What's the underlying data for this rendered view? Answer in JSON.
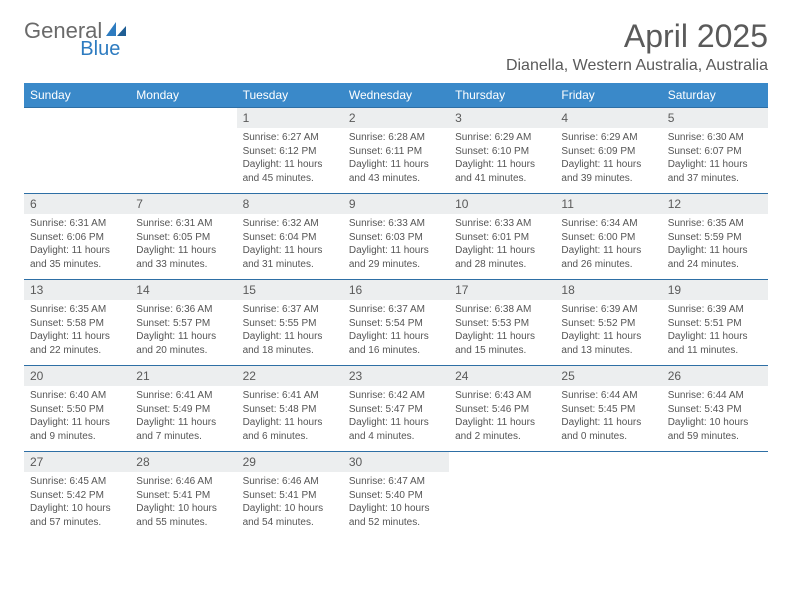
{
  "logo": {
    "part1": "General",
    "part2": "Blue"
  },
  "title": "April 2025",
  "location": "Dianella, Western Australia, Australia",
  "colors": {
    "header_bg": "#3a89c9",
    "header_text": "#ffffff",
    "rule": "#2e6fa5",
    "daynum_bg": "#eceeef",
    "text": "#555555",
    "logo_gray": "#6a6a6a",
    "logo_blue": "#2d7bc0"
  },
  "daysOfWeek": [
    "Sunday",
    "Monday",
    "Tuesday",
    "Wednesday",
    "Thursday",
    "Friday",
    "Saturday"
  ],
  "weeks": [
    [
      null,
      null,
      {
        "n": "1",
        "sr": "Sunrise: 6:27 AM",
        "ss": "Sunset: 6:12 PM",
        "d1": "Daylight: 11 hours",
        "d2": "and 45 minutes."
      },
      {
        "n": "2",
        "sr": "Sunrise: 6:28 AM",
        "ss": "Sunset: 6:11 PM",
        "d1": "Daylight: 11 hours",
        "d2": "and 43 minutes."
      },
      {
        "n": "3",
        "sr": "Sunrise: 6:29 AM",
        "ss": "Sunset: 6:10 PM",
        "d1": "Daylight: 11 hours",
        "d2": "and 41 minutes."
      },
      {
        "n": "4",
        "sr": "Sunrise: 6:29 AM",
        "ss": "Sunset: 6:09 PM",
        "d1": "Daylight: 11 hours",
        "d2": "and 39 minutes."
      },
      {
        "n": "5",
        "sr": "Sunrise: 6:30 AM",
        "ss": "Sunset: 6:07 PM",
        "d1": "Daylight: 11 hours",
        "d2": "and 37 minutes."
      }
    ],
    [
      {
        "n": "6",
        "sr": "Sunrise: 6:31 AM",
        "ss": "Sunset: 6:06 PM",
        "d1": "Daylight: 11 hours",
        "d2": "and 35 minutes."
      },
      {
        "n": "7",
        "sr": "Sunrise: 6:31 AM",
        "ss": "Sunset: 6:05 PM",
        "d1": "Daylight: 11 hours",
        "d2": "and 33 minutes."
      },
      {
        "n": "8",
        "sr": "Sunrise: 6:32 AM",
        "ss": "Sunset: 6:04 PM",
        "d1": "Daylight: 11 hours",
        "d2": "and 31 minutes."
      },
      {
        "n": "9",
        "sr": "Sunrise: 6:33 AM",
        "ss": "Sunset: 6:03 PM",
        "d1": "Daylight: 11 hours",
        "d2": "and 29 minutes."
      },
      {
        "n": "10",
        "sr": "Sunrise: 6:33 AM",
        "ss": "Sunset: 6:01 PM",
        "d1": "Daylight: 11 hours",
        "d2": "and 28 minutes."
      },
      {
        "n": "11",
        "sr": "Sunrise: 6:34 AM",
        "ss": "Sunset: 6:00 PM",
        "d1": "Daylight: 11 hours",
        "d2": "and 26 minutes."
      },
      {
        "n": "12",
        "sr": "Sunrise: 6:35 AM",
        "ss": "Sunset: 5:59 PM",
        "d1": "Daylight: 11 hours",
        "d2": "and 24 minutes."
      }
    ],
    [
      {
        "n": "13",
        "sr": "Sunrise: 6:35 AM",
        "ss": "Sunset: 5:58 PM",
        "d1": "Daylight: 11 hours",
        "d2": "and 22 minutes."
      },
      {
        "n": "14",
        "sr": "Sunrise: 6:36 AM",
        "ss": "Sunset: 5:57 PM",
        "d1": "Daylight: 11 hours",
        "d2": "and 20 minutes."
      },
      {
        "n": "15",
        "sr": "Sunrise: 6:37 AM",
        "ss": "Sunset: 5:55 PM",
        "d1": "Daylight: 11 hours",
        "d2": "and 18 minutes."
      },
      {
        "n": "16",
        "sr": "Sunrise: 6:37 AM",
        "ss": "Sunset: 5:54 PM",
        "d1": "Daylight: 11 hours",
        "d2": "and 16 minutes."
      },
      {
        "n": "17",
        "sr": "Sunrise: 6:38 AM",
        "ss": "Sunset: 5:53 PM",
        "d1": "Daylight: 11 hours",
        "d2": "and 15 minutes."
      },
      {
        "n": "18",
        "sr": "Sunrise: 6:39 AM",
        "ss": "Sunset: 5:52 PM",
        "d1": "Daylight: 11 hours",
        "d2": "and 13 minutes."
      },
      {
        "n": "19",
        "sr": "Sunrise: 6:39 AM",
        "ss": "Sunset: 5:51 PM",
        "d1": "Daylight: 11 hours",
        "d2": "and 11 minutes."
      }
    ],
    [
      {
        "n": "20",
        "sr": "Sunrise: 6:40 AM",
        "ss": "Sunset: 5:50 PM",
        "d1": "Daylight: 11 hours",
        "d2": "and 9 minutes."
      },
      {
        "n": "21",
        "sr": "Sunrise: 6:41 AM",
        "ss": "Sunset: 5:49 PM",
        "d1": "Daylight: 11 hours",
        "d2": "and 7 minutes."
      },
      {
        "n": "22",
        "sr": "Sunrise: 6:41 AM",
        "ss": "Sunset: 5:48 PM",
        "d1": "Daylight: 11 hours",
        "d2": "and 6 minutes."
      },
      {
        "n": "23",
        "sr": "Sunrise: 6:42 AM",
        "ss": "Sunset: 5:47 PM",
        "d1": "Daylight: 11 hours",
        "d2": "and 4 minutes."
      },
      {
        "n": "24",
        "sr": "Sunrise: 6:43 AM",
        "ss": "Sunset: 5:46 PM",
        "d1": "Daylight: 11 hours",
        "d2": "and 2 minutes."
      },
      {
        "n": "25",
        "sr": "Sunrise: 6:44 AM",
        "ss": "Sunset: 5:45 PM",
        "d1": "Daylight: 11 hours",
        "d2": "and 0 minutes."
      },
      {
        "n": "26",
        "sr": "Sunrise: 6:44 AM",
        "ss": "Sunset: 5:43 PM",
        "d1": "Daylight: 10 hours",
        "d2": "and 59 minutes."
      }
    ],
    [
      {
        "n": "27",
        "sr": "Sunrise: 6:45 AM",
        "ss": "Sunset: 5:42 PM",
        "d1": "Daylight: 10 hours",
        "d2": "and 57 minutes."
      },
      {
        "n": "28",
        "sr": "Sunrise: 6:46 AM",
        "ss": "Sunset: 5:41 PM",
        "d1": "Daylight: 10 hours",
        "d2": "and 55 minutes."
      },
      {
        "n": "29",
        "sr": "Sunrise: 6:46 AM",
        "ss": "Sunset: 5:41 PM",
        "d1": "Daylight: 10 hours",
        "d2": "and 54 minutes."
      },
      {
        "n": "30",
        "sr": "Sunrise: 6:47 AM",
        "ss": "Sunset: 5:40 PM",
        "d1": "Daylight: 10 hours",
        "d2": "and 52 minutes."
      },
      null,
      null,
      null
    ]
  ]
}
